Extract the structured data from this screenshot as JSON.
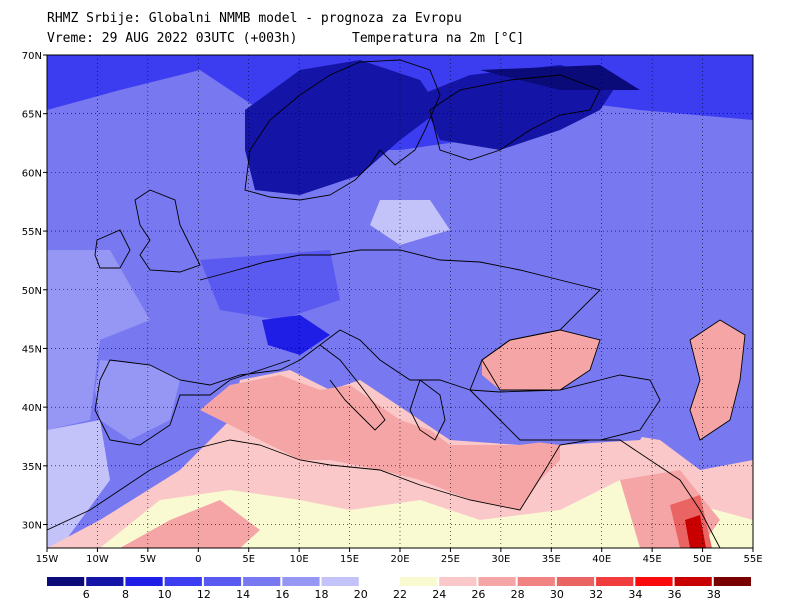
{
  "header": {
    "line1": "RHMZ Srbije: Globalni NMMB model - prognoza za Evropu",
    "line2": "Vreme: 29 AUG 2022 03UTC (+003h)",
    "parameter": "Temperatura na 2m [°C]"
  },
  "map": {
    "lon_range": [
      -15,
      55
    ],
    "lat_range": [
      28,
      70
    ],
    "lon_ticks": [
      {
        "lon": -15,
        "label": "15W"
      },
      {
        "lon": -10,
        "label": "10W"
      },
      {
        "lon": -5,
        "label": "5W"
      },
      {
        "lon": 0,
        "label": "0"
      },
      {
        "lon": 5,
        "label": "5E"
      },
      {
        "lon": 10,
        "label": "10E"
      },
      {
        "lon": 15,
        "label": "15E"
      },
      {
        "lon": 20,
        "label": "20E"
      },
      {
        "lon": 25,
        "label": "25E"
      },
      {
        "lon": 30,
        "label": "30E"
      },
      {
        "lon": 35,
        "label": "35E"
      },
      {
        "lon": 40,
        "label": "40E"
      },
      {
        "lon": 45,
        "label": "45E"
      },
      {
        "lon": 50,
        "label": "50E"
      },
      {
        "lon": 55,
        "label": "55E"
      }
    ],
    "lat_ticks": [
      {
        "lat": 30,
        "label": "30N"
      },
      {
        "lat": 35,
        "label": "35N"
      },
      {
        "lat": 40,
        "label": "40N"
      },
      {
        "lat": 45,
        "label": "45N"
      },
      {
        "lat": 50,
        "label": "50N"
      },
      {
        "lat": 55,
        "label": "55N"
      },
      {
        "lat": 60,
        "label": "60N"
      },
      {
        "lat": 65,
        "label": "65N"
      },
      {
        "lat": 70,
        "label": "70N"
      }
    ]
  },
  "colorbar": {
    "colors": [
      "#0a0a78",
      "#1414a6",
      "#1e1ee6",
      "#3c3cf0",
      "#5a5af0",
      "#7878f0",
      "#9696f5",
      "#c3c3fa",
      "#ffffff",
      "#fafad2",
      "#fac8c8",
      "#f5a5a5",
      "#f08282",
      "#eb6464",
      "#f03c3c",
      "#fa0a0a",
      "#c80000",
      "#780000"
    ],
    "labels": [
      "6",
      "8",
      "10",
      "12",
      "14",
      "16",
      "18",
      "20",
      "22",
      "24",
      "26",
      "28",
      "30",
      "32",
      "34",
      "36",
      "38"
    ]
  }
}
